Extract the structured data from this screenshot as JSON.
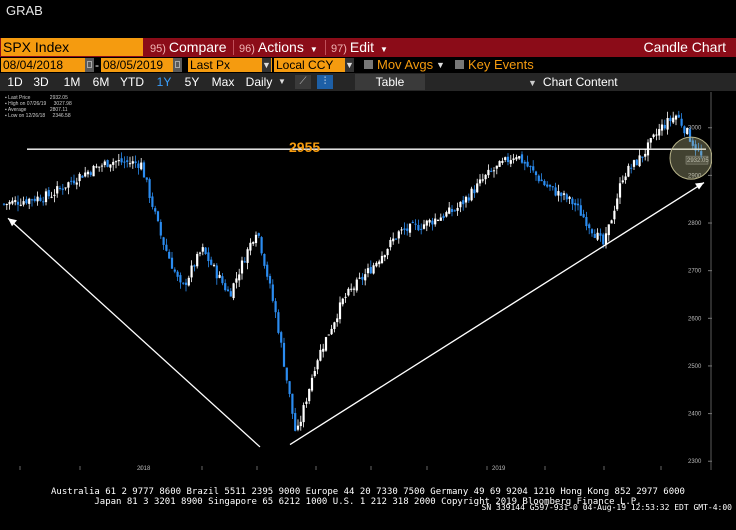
{
  "window": {
    "title": "GRAB"
  },
  "toolbar": {
    "ticker": "SPX Index",
    "buttons": [
      {
        "num": "95)",
        "label": "Compare"
      },
      {
        "num": "96)",
        "label": "Actions"
      },
      {
        "num": "97)",
        "label": "Edit"
      }
    ],
    "view_title": "Candle Chart"
  },
  "range": {
    "start": "08/04/2018",
    "end": "08/05/2019",
    "field": "Last Px",
    "currency": "Local CCY",
    "mov_avgs": "Mov Avgs",
    "key_events": "Key Events"
  },
  "periods": {
    "items": [
      "1D",
      "3D",
      "1M",
      "6M",
      "YTD",
      "1Y",
      "5Y",
      "Max"
    ],
    "active": "1Y",
    "interval": "Daily",
    "table": "Table",
    "chart_content": "Chart Content"
  },
  "legend": {
    "rows": [
      {
        "label": "Last Price",
        "value": "2932.05"
      },
      {
        "label": "High on 07/26/19",
        "value": "3027.98"
      },
      {
        "label": "Average",
        "value": "2807.11"
      },
      {
        "label": "Low on 12/26/18",
        "value": "2346.58"
      }
    ]
  },
  "colors": {
    "accent": "#f59b0f",
    "header_red": "#8b0c18",
    "candle_up": "#ffffff",
    "candle_down": "#2b8cf0",
    "background": "#000000"
  },
  "chart_data": {
    "type": "candlestick",
    "x_tick_labels": [
      "Aug",
      "Sep",
      "Oct",
      "Nov",
      "Dec",
      "Jan",
      "Feb",
      "Mar",
      "Apr",
      "May",
      "Jun",
      "Jul"
    ],
    "x_year_labels": [
      "2018",
      "2019"
    ],
    "y_ticks": [
      2300,
      2400,
      2500,
      2600,
      2700,
      2800,
      2900,
      3000
    ],
    "ylim": [
      2290,
      3075
    ],
    "last_price_label": "2932.05",
    "series": [
      {
        "name": "SPX Index",
        "close_path": [
          [
            "Aug",
            2840
          ],
          [
            "Aug",
            2858
          ],
          [
            "Sep",
            2900
          ],
          [
            "Sep",
            2930
          ],
          [
            "Oct",
            2925
          ],
          [
            "Oct",
            2770
          ],
          [
            "Oct",
            2660
          ],
          [
            "Nov",
            2745
          ],
          [
            "Nov",
            2650
          ],
          [
            "Dec",
            2790
          ],
          [
            "Dec",
            2600
          ],
          [
            "Dec",
            2351
          ],
          [
            "Jan",
            2510
          ],
          [
            "Jan",
            2640
          ],
          [
            "Feb",
            2705
          ],
          [
            "Feb",
            2780
          ],
          [
            "Mar",
            2800
          ],
          [
            "Mar",
            2830
          ],
          [
            "Apr",
            2900
          ],
          [
            "Apr",
            2945
          ],
          [
            "May",
            2880
          ],
          [
            "May",
            2840
          ],
          [
            "Jun",
            2752
          ],
          [
            "Jun",
            2900
          ],
          [
            "Jun",
            2940
          ],
          [
            "Jul",
            3000
          ],
          [
            "Jul",
            3027
          ],
          [
            "Jul",
            2932
          ]
        ]
      }
    ],
    "annotations": {
      "level_value": 2955,
      "level_label": "2955",
      "trendlines": [
        {
          "from": [
            "Dec",
            2330
          ],
          "to": [
            "Aug",
            2810
          ]
        },
        {
          "from": [
            "Jan",
            2335
          ],
          "to": [
            "Jul",
            2885
          ]
        }
      ],
      "circle_at": [
        "Jul",
        2932
      ]
    }
  },
  "footer": {
    "line1": "Australia 61 2 9777 8600 Brazil 5511 2395 9000 Europe 44 20 7330 7500 Germany 49 69 9204 1210 Hong Kong 852 2977 6000",
    "line2": "Japan 81 3 3201 8900          Singapore 65 6212 1000          U.S. 1 212 318 2000          Copyright 2019 Bloomberg Finance L.P.",
    "line3": "SN 339144 G597-931-0 04-Aug-19 12:53:32 EDT  GMT-4:00"
  }
}
